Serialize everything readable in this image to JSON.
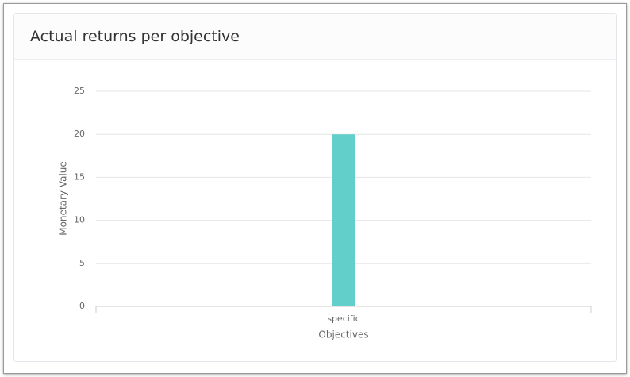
{
  "chart_data": {
    "type": "bar",
    "title": "Actual returns per objective",
    "categories": [
      "specific"
    ],
    "values": [
      20
    ],
    "color": "#63cfcb",
    "xlabel": "Objectives",
    "ylabel": "Monetary Value",
    "ylim": [
      0,
      25
    ],
    "yticks": [
      0,
      5,
      10,
      15,
      20,
      25
    ],
    "grid": true
  }
}
